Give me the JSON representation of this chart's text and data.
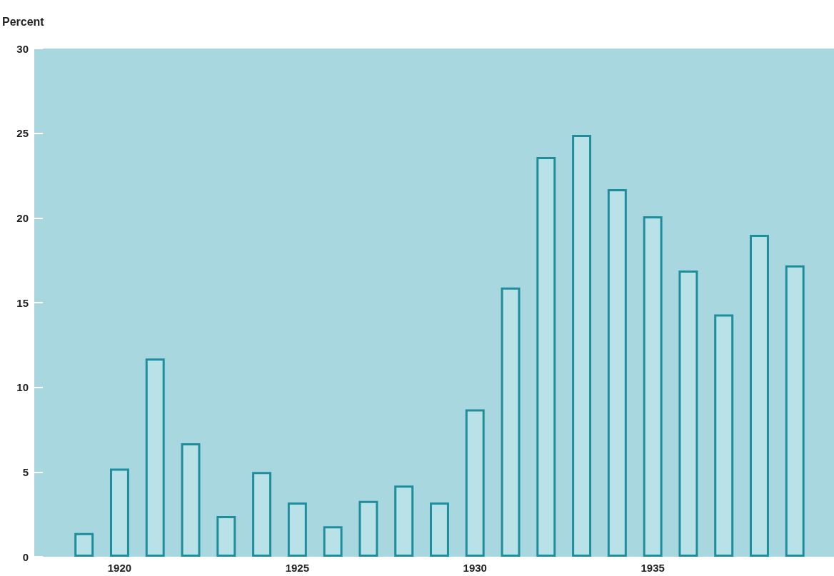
{
  "chart_data": {
    "type": "bar",
    "ylabel": "Percent",
    "x": [
      1919,
      1920,
      1921,
      1922,
      1923,
      1924,
      1925,
      1926,
      1927,
      1928,
      1929,
      1930,
      1931,
      1932,
      1933,
      1934,
      1935,
      1936,
      1937,
      1938,
      1939
    ],
    "values": [
      1.4,
      5.2,
      11.7,
      6.7,
      2.4,
      5.0,
      3.2,
      1.8,
      3.3,
      4.2,
      3.2,
      8.7,
      15.9,
      23.6,
      24.9,
      21.7,
      20.1,
      16.9,
      14.3,
      19.0,
      17.2
    ],
    "color": "#1f8e9c",
    "xlim": [
      1917.6,
      1940.1
    ],
    "xticks": [
      1920,
      1925,
      1930,
      1935
    ],
    "ylim": [
      0,
      30
    ],
    "yticks": [
      0,
      5,
      10,
      15,
      20,
      25,
      30
    ],
    "grid": false
  }
}
